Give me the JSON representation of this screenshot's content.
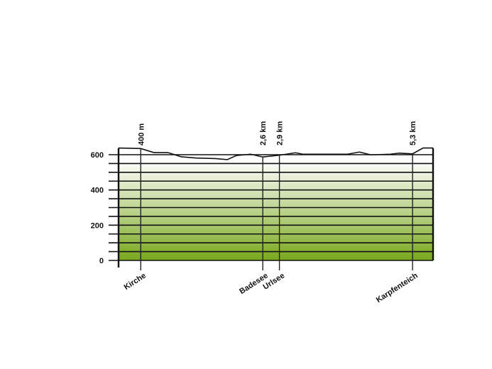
{
  "chart_data": {
    "type": "area",
    "title": "",
    "xlabel": "",
    "ylabel": "",
    "x_unit": "km",
    "y_unit": "m",
    "xlim": [
      0,
      5.67
    ],
    "ylim": [
      0,
      600
    ],
    "grid": true,
    "grid_step": 50,
    "y_ticks": [
      {
        "value": 0,
        "label": "0"
      },
      {
        "value": 200,
        "label": "200"
      },
      {
        "value": 400,
        "label": "400"
      },
      {
        "value": 600,
        "label": "600"
      }
    ],
    "profile": {
      "x": [
        0,
        0.4,
        0.64,
        0.89,
        1.13,
        1.4,
        1.74,
        1.96,
        2.12,
        2.38,
        2.6,
        2.9,
        3.19,
        3.32,
        4.13,
        4.34,
        4.55,
        4.9,
        5.06,
        5.3,
        5.49,
        5.67
      ],
      "y": [
        638,
        635,
        612,
        612,
        588,
        581,
        578,
        572,
        595,
        603,
        587,
        597,
        611,
        603,
        603,
        615,
        599,
        603,
        609,
        605,
        638,
        638
      ]
    },
    "waypoints": [
      {
        "name": "Kirche",
        "km": 0.4,
        "distance_label": "400 m"
      },
      {
        "name": "Badesee",
        "km": 2.6,
        "distance_label": "2,6 km"
      },
      {
        "name": "Urlsee",
        "km": 2.9,
        "distance_label": "2,9 km"
      },
      {
        "name": "Karpfenteich",
        "km": 5.3,
        "distance_label": "5,3 km"
      }
    ],
    "colors": {
      "fill_low": "#78a81c",
      "fill_high": "#ffffff",
      "line": "#111111"
    }
  }
}
